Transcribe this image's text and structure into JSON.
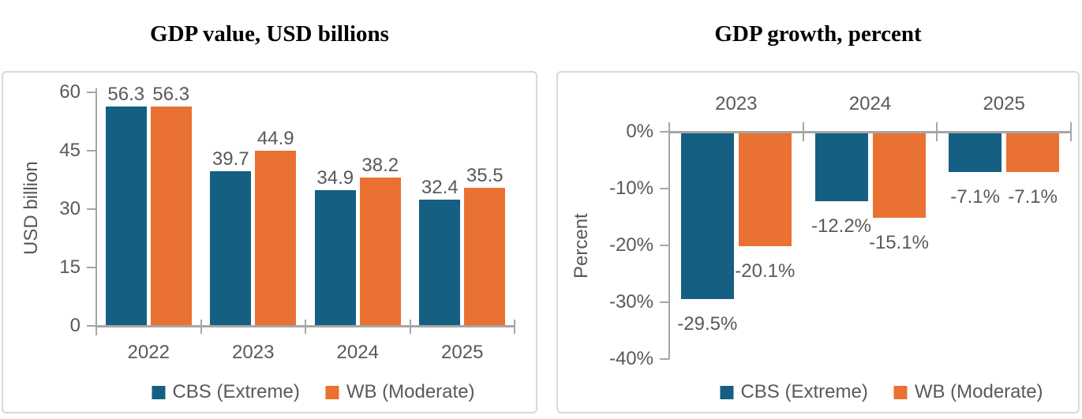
{
  "page": {
    "background": "#FFFFFF",
    "border_color": "#D9D9D9",
    "axis_color": "#A6A6A6",
    "text_color": "#595959",
    "title_color": "#000000"
  },
  "chart_data": [
    {
      "type": "bar",
      "title": "GDP value, USD billions",
      "ylabel": "USD billion",
      "xlabel": "",
      "categories": [
        "2022",
        "2023",
        "2024",
        "2025"
      ],
      "series": [
        {
          "name": "CBS (Extreme)",
          "color": "#156082",
          "values": [
            56.3,
            39.7,
            34.9,
            32.4
          ],
          "labels": [
            "56.3",
            "39.7",
            "34.9",
            "32.4"
          ]
        },
        {
          "name": "WB (Moderate)",
          "color": "#E97132",
          "values": [
            56.3,
            44.9,
            38.2,
            35.5
          ],
          "labels": [
            "56.3",
            "44.9",
            "38.2",
            "35.5"
          ]
        }
      ],
      "ylim": [
        0,
        60
      ],
      "yticks": [
        {
          "value": 60,
          "label": "60"
        },
        {
          "value": 45,
          "label": "45"
        },
        {
          "value": 30,
          "label": "30"
        },
        {
          "value": 15,
          "label": "15"
        },
        {
          "value": 0,
          "label": "0"
        }
      ],
      "grid": false,
      "legend_position": "bottom",
      "value_labels_position": "outside-end-above",
      "category_labels_position": "below-axis"
    },
    {
      "type": "bar",
      "title": "GDP growth, percent",
      "ylabel": "Percent",
      "xlabel": "",
      "categories": [
        "2023",
        "2024",
        "2025"
      ],
      "series": [
        {
          "name": "CBS (Extreme)",
          "color": "#156082",
          "values": [
            -29.5,
            -12.2,
            -7.1
          ],
          "labels": [
            "-29.5%",
            "-12.2%",
            "-7.1%"
          ]
        },
        {
          "name": "WB (Moderate)",
          "color": "#E97132",
          "values": [
            -20.1,
            -15.1,
            -7.1
          ],
          "labels": [
            "-20.1%",
            "-15.1%",
            "-7.1%"
          ]
        }
      ],
      "ylim": [
        -40,
        0
      ],
      "yticks": [
        {
          "value": 0,
          "label": "0%"
        },
        {
          "value": -10,
          "label": "-10%"
        },
        {
          "value": -20,
          "label": "-20%"
        },
        {
          "value": -30,
          "label": "-30%"
        },
        {
          "value": -40,
          "label": "-40%"
        }
      ],
      "grid": false,
      "legend_position": "bottom",
      "value_labels_position": "outside-end-below",
      "category_labels_position": "above-axis"
    }
  ]
}
